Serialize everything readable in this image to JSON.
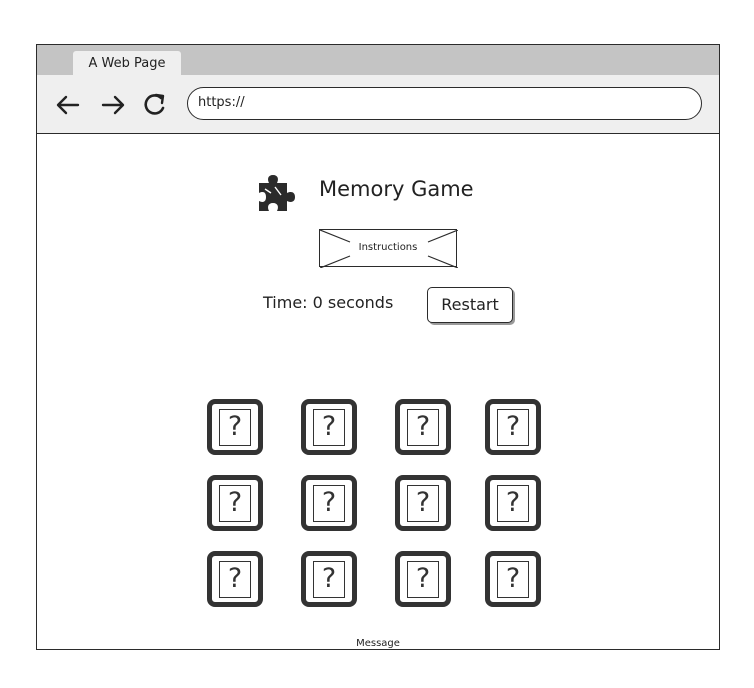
{
  "browser": {
    "tab_title": "A Web Page",
    "address": "https://",
    "icons": [
      "back-arrow-icon",
      "forward-arrow-icon",
      "reload-icon"
    ]
  },
  "game": {
    "title": "Memory Game",
    "title_icon": "puzzle-piece-icon",
    "instructions_label": "Instructions",
    "time_label": "Time: 0 seconds",
    "restart_label": "Restart",
    "card_symbol": "?",
    "grid": {
      "rows": 3,
      "columns": 4
    },
    "message": "Message"
  },
  "colors": {
    "tab_strip": "#c4c4c4",
    "toolbar": "#efefef",
    "ink": "#2b2b2b"
  }
}
